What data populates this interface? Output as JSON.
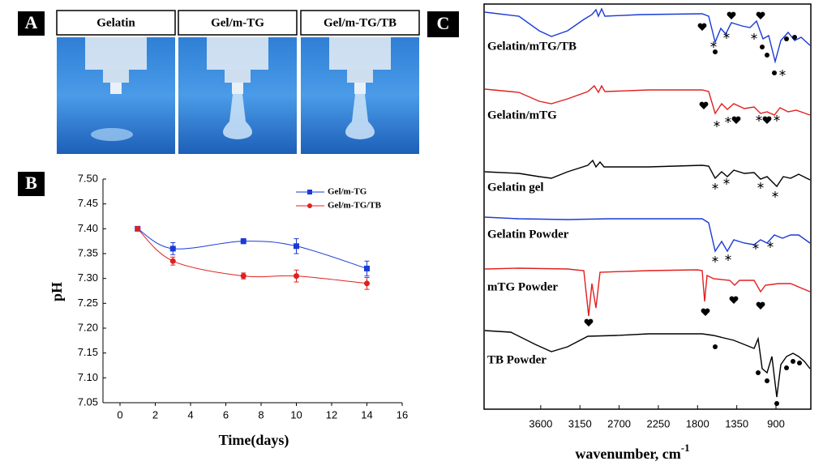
{
  "panel_labels": [
    "A",
    "B",
    "C"
  ],
  "photo_labels": [
    "Gelatin",
    "Gel/m-TG",
    "Gel/m-TG/TB"
  ],
  "chart_data": [
    {
      "type": "line",
      "xlabel": "Time(days)",
      "ylabel": "pH",
      "x": [
        1,
        3,
        7,
        10,
        14
      ],
      "series": [
        {
          "name": "Gel/m-TG",
          "color": "#1a3ad6",
          "values": [
            7.4,
            7.36,
            7.375,
            7.365,
            7.32
          ],
          "errors": [
            0,
            0.012,
            0.005,
            0.015,
            0.015
          ]
        },
        {
          "name": "Gel/m-TG/TB",
          "color": "#e02020",
          "values": [
            7.4,
            7.335,
            7.305,
            7.305,
            7.29
          ],
          "errors": [
            0,
            0.008,
            0.006,
            0.012,
            0.012
          ]
        }
      ],
      "xlim": [
        -1,
        16
      ],
      "xticks": [
        0,
        2,
        4,
        6,
        8,
        10,
        12,
        14,
        16
      ],
      "ylim": [
        7.05,
        7.5
      ],
      "yticks": [
        7.05,
        {
          "value": 7.1,
          "label": "7.10"
        },
        7.15,
        {
          "value": 7.2,
          "label": "7.20"
        },
        7.25,
        {
          "value": 7.3,
          "label": "7.30"
        },
        7.35,
        {
          "value": 7.4,
          "label": "7.40"
        },
        7.45,
        {
          "value": 7.5,
          "label": "7.50"
        }
      ],
      "legend": "upper right"
    },
    {
      "type": "spectra",
      "xlabel": "wavenumber, cm",
      "xlabel_superscript": "-1",
      "xlim": [
        4250,
        500
      ],
      "xticks": [
        3600,
        3150,
        2700,
        2250,
        1800,
        1350,
        900
      ],
      "series": [
        {
          "name": "Gelatin/mTG/TB",
          "color": "#1a3ad6"
        },
        {
          "name": "Gelatin/mTG",
          "color": "#e02020"
        },
        {
          "name": "Gelatin gel",
          "color": "#000000"
        },
        {
          "name": "Gelatin Powder",
          "color": "#1a3ad6"
        },
        {
          "name": "mTG Powder",
          "color": "#e02020"
        },
        {
          "name": "TB Powder",
          "color": "#000000"
        }
      ]
    }
  ]
}
